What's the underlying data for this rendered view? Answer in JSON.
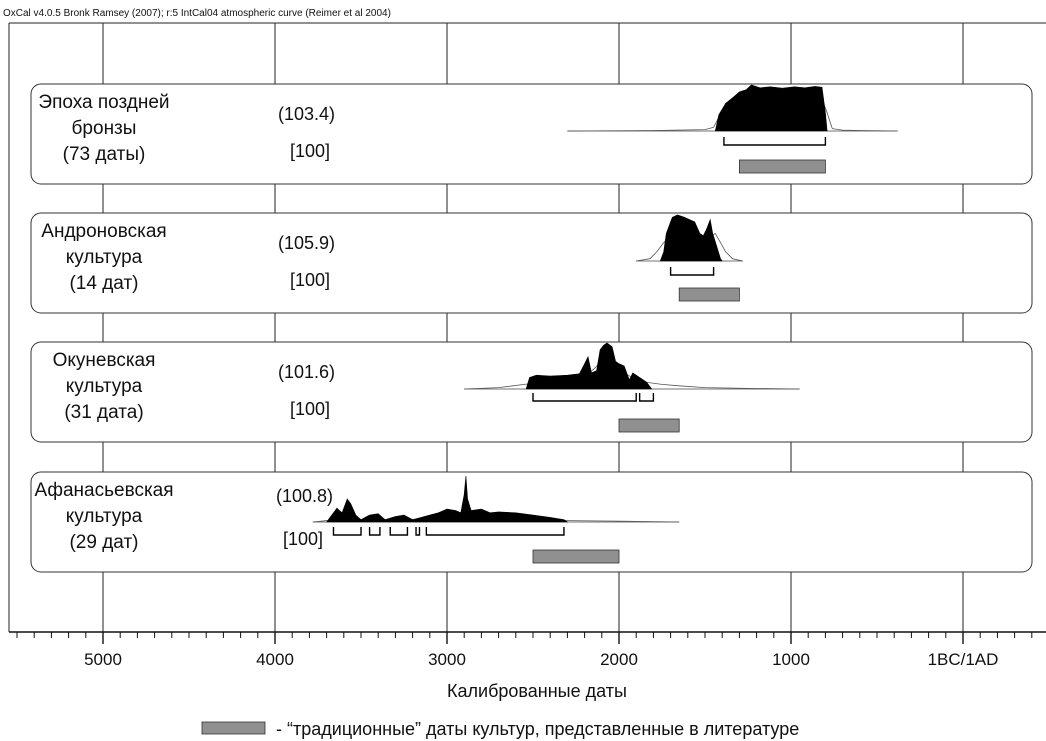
{
  "header": "OxCal v4.0.5 Bronk Ramsey (2007); r:5 IntCal04 atmospheric curve (Reimer et al 2004)",
  "legend_text": "- “традиционные” даты культур, представленные в литературе",
  "colors": {
    "traditional_bar": "#909090",
    "distribution": "#000000",
    "frame": "#222222"
  },
  "chart_data": {
    "type": "area",
    "xlabel": "Калиброванные даты",
    "x_axis": {
      "direction": "decreasing-left-to-right",
      "domain_bp_bc": [
        5600,
        -500
      ],
      "ticks": [
        {
          "value": 5000,
          "label": "5000"
        },
        {
          "value": 4000,
          "label": "4000"
        },
        {
          "value": 3000,
          "label": "3000"
        },
        {
          "value": 2000,
          "label": "2000"
        },
        {
          "value": 1000,
          "label": "1000"
        },
        {
          "value": 0,
          "label": "1BC/1AD"
        }
      ],
      "minor_step": 100,
      "gridlines": true
    },
    "series": [
      {
        "label_lines": [
          "Эпоха поздней",
          "бронзы",
          "(73 даты)"
        ],
        "agreement": "(103.4)",
        "percent": "[100]",
        "line_range": [
          2300,
          380
        ],
        "outline": [
          [
            2300,
            0
          ],
          [
            1800,
            0.01
          ],
          [
            1500,
            0.03
          ],
          [
            1450,
            0.08
          ],
          [
            1420,
            0.3
          ],
          [
            1390,
            0.45
          ],
          [
            1330,
            0.55
          ],
          [
            1280,
            0.6
          ],
          [
            1200,
            0.72
          ],
          [
            1100,
            0.75
          ],
          [
            1000,
            0.74
          ],
          [
            900,
            0.72
          ],
          [
            820,
            0.7
          ],
          [
            790,
            0.4
          ],
          [
            760,
            0.05
          ],
          [
            700,
            0.02
          ],
          [
            600,
            0.01
          ],
          [
            380,
            0
          ]
        ],
        "profile": [
          [
            1440,
            0
          ],
          [
            1420,
            0.35
          ],
          [
            1380,
            0.6
          ],
          [
            1330,
            0.75
          ],
          [
            1300,
            0.85
          ],
          [
            1260,
            0.9
          ],
          [
            1230,
            1.0
          ],
          [
            1180,
            0.94
          ],
          [
            1120,
            0.96
          ],
          [
            1050,
            0.93
          ],
          [
            980,
            0.96
          ],
          [
            920,
            0.94
          ],
          [
            860,
            0.97
          ],
          [
            820,
            0.95
          ],
          [
            800,
            0.4
          ],
          [
            790,
            0
          ]
        ],
        "ranges_95": [
          [
            1390,
            800
          ]
        ],
        "traditional": [
          1300,
          800
        ]
      },
      {
        "label_lines": [
          "Андроновская",
          "культура",
          "(14 дат)"
        ],
        "agreement": "(105.9)",
        "percent": "[100]",
        "line_range": [
          1900,
          1280
        ],
        "outline": [
          [
            1900,
            0
          ],
          [
            1820,
            0.05
          ],
          [
            1780,
            0.2
          ],
          [
            1740,
            0.4
          ],
          [
            1700,
            0.55
          ],
          [
            1650,
            0.65
          ],
          [
            1600,
            0.6
          ],
          [
            1540,
            0.55
          ],
          [
            1480,
            0.5
          ],
          [
            1440,
            0.6
          ],
          [
            1410,
            0.4
          ],
          [
            1380,
            0.2
          ],
          [
            1340,
            0.05
          ],
          [
            1280,
            0
          ]
        ],
        "profile": [
          [
            1760,
            0
          ],
          [
            1740,
            0.2
          ],
          [
            1725,
            0.6
          ],
          [
            1705,
            0.8
          ],
          [
            1690,
            0.95
          ],
          [
            1660,
            1.0
          ],
          [
            1620,
            0.95
          ],
          [
            1590,
            0.9
          ],
          [
            1560,
            0.85
          ],
          [
            1530,
            0.6
          ],
          [
            1510,
            0.55
          ],
          [
            1490,
            0.7
          ],
          [
            1470,
            0.9
          ],
          [
            1455,
            0.6
          ],
          [
            1430,
            0.3
          ],
          [
            1410,
            0.05
          ],
          [
            1400,
            0
          ]
        ],
        "ranges_95": [
          [
            1700,
            1450
          ]
        ],
        "traditional": [
          1650,
          1300
        ]
      },
      {
        "label_lines": [
          "Окуневская",
          "культура",
          "(31 дата)"
        ],
        "agreement": "(101.6)",
        "percent": "[100]",
        "line_range": [
          2900,
          950
        ],
        "outline": [
          [
            2900,
            0
          ],
          [
            2700,
            0.03
          ],
          [
            2550,
            0.1
          ],
          [
            2450,
            0.15
          ],
          [
            2300,
            0.2
          ],
          [
            2200,
            0.25
          ],
          [
            2100,
            0.6
          ],
          [
            2050,
            0.55
          ],
          [
            1950,
            0.3
          ],
          [
            1850,
            0.15
          ],
          [
            1750,
            0.1
          ],
          [
            1650,
            0.07
          ],
          [
            1500,
            0.03
          ],
          [
            1200,
            0.01
          ],
          [
            950,
            0
          ]
        ],
        "profile": [
          [
            2540,
            0
          ],
          [
            2520,
            0.25
          ],
          [
            2480,
            0.3
          ],
          [
            2400,
            0.28
          ],
          [
            2300,
            0.3
          ],
          [
            2230,
            0.33
          ],
          [
            2200,
            0.55
          ],
          [
            2180,
            0.7
          ],
          [
            2160,
            0.35
          ],
          [
            2130,
            0.4
          ],
          [
            2110,
            0.85
          ],
          [
            2090,
            0.95
          ],
          [
            2070,
            1.0
          ],
          [
            2040,
            0.92
          ],
          [
            2020,
            0.6
          ],
          [
            2000,
            0.55
          ],
          [
            1970,
            0.5
          ],
          [
            1940,
            0.2
          ],
          [
            1920,
            0.35
          ],
          [
            1880,
            0.25
          ],
          [
            1840,
            0.15
          ],
          [
            1810,
            0
          ]
        ],
        "ranges_95": [
          [
            2500,
            1900
          ],
          [
            1880,
            1800
          ]
        ],
        "traditional": [
          2000,
          1650
        ]
      },
      {
        "label_lines": [
          "Афанасьевская",
          "культура",
          "(29 дат)"
        ],
        "agreement": "(100.8)",
        "percent": "[100]",
        "line_range": [
          3780,
          1650
        ],
        "outline": [
          [
            3780,
            0
          ],
          [
            3650,
            0.05
          ],
          [
            3400,
            0.05
          ],
          [
            3100,
            0.05
          ],
          [
            2900,
            0.05
          ],
          [
            2600,
            0.05
          ],
          [
            2300,
            0.03
          ],
          [
            2000,
            0.02
          ],
          [
            1650,
            0
          ]
        ],
        "profile": [
          [
            3700,
            0
          ],
          [
            3670,
            0.15
          ],
          [
            3640,
            0.3
          ],
          [
            3610,
            0.2
          ],
          [
            3580,
            0.5
          ],
          [
            3560,
            0.4
          ],
          [
            3530,
            0.15
          ],
          [
            3500,
            0.05
          ],
          [
            3450,
            0.15
          ],
          [
            3400,
            0.18
          ],
          [
            3360,
            0.05
          ],
          [
            3300,
            0.12
          ],
          [
            3250,
            0.15
          ],
          [
            3200,
            0.05
          ],
          [
            3150,
            0.1
          ],
          [
            3100,
            0.15
          ],
          [
            3050,
            0.2
          ],
          [
            3000,
            0.28
          ],
          [
            2950,
            0.25
          ],
          [
            2920,
            0.2
          ],
          [
            2900,
            0.6
          ],
          [
            2890,
            1.0
          ],
          [
            2880,
            0.5
          ],
          [
            2860,
            0.25
          ],
          [
            2800,
            0.28
          ],
          [
            2750,
            0.2
          ],
          [
            2700,
            0.22
          ],
          [
            2600,
            0.2
          ],
          [
            2500,
            0.15
          ],
          [
            2400,
            0.1
          ],
          [
            2320,
            0.05
          ],
          [
            2300,
            0
          ]
        ],
        "ranges_95": [
          [
            3660,
            3500
          ],
          [
            3450,
            3390
          ],
          [
            3330,
            3230
          ],
          [
            3180,
            3160
          ],
          [
            3120,
            2320
          ]
        ],
        "traditional": [
          2500,
          2000
        ]
      }
    ]
  }
}
